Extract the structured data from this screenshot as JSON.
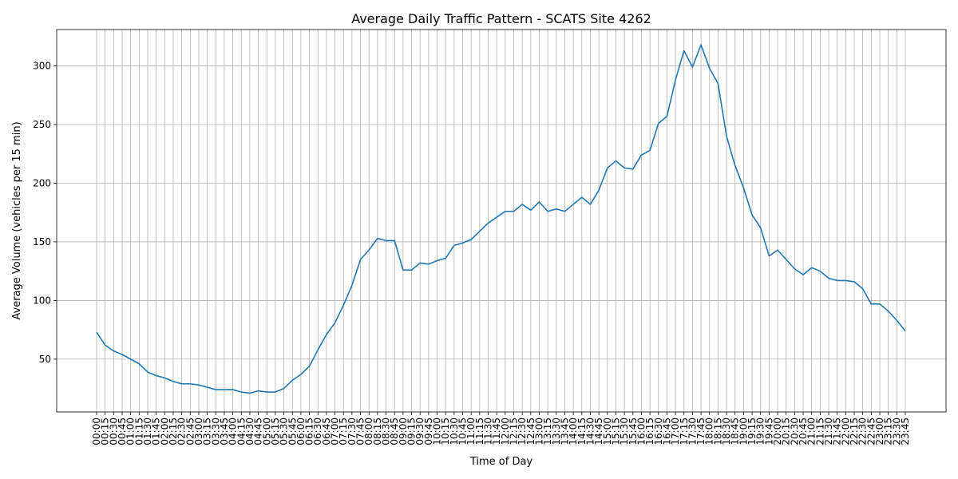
{
  "chart_data": {
    "type": "line",
    "title": "Average Daily Traffic Pattern - SCATS Site 4262",
    "xlabel": "Time of Day",
    "ylabel": "Average Volume (vehicles per 15 min)",
    "ylim": [
      5,
      331
    ],
    "yticks": [
      50,
      100,
      150,
      200,
      250,
      300
    ],
    "grid": true,
    "x_tick_rotation": 90,
    "line_color": "#1f77b4",
    "categories": [
      "00:00",
      "00:15",
      "00:30",
      "00:45",
      "01:00",
      "01:15",
      "01:30",
      "01:45",
      "02:00",
      "02:15",
      "02:30",
      "02:45",
      "03:00",
      "03:15",
      "03:30",
      "03:45",
      "04:00",
      "04:15",
      "04:30",
      "04:45",
      "05:00",
      "05:15",
      "05:30",
      "05:45",
      "06:00",
      "06:15",
      "06:30",
      "06:45",
      "07:00",
      "07:15",
      "07:30",
      "07:45",
      "08:00",
      "08:15",
      "08:30",
      "08:45",
      "09:00",
      "09:15",
      "09:30",
      "09:45",
      "10:00",
      "10:15",
      "10:30",
      "10:45",
      "11:00",
      "11:15",
      "11:30",
      "11:45",
      "12:00",
      "12:15",
      "12:30",
      "12:45",
      "13:00",
      "13:15",
      "13:30",
      "13:45",
      "14:00",
      "14:15",
      "14:30",
      "14:45",
      "15:00",
      "15:15",
      "15:30",
      "15:45",
      "16:00",
      "16:15",
      "16:30",
      "16:45",
      "17:00",
      "17:15",
      "17:30",
      "17:45",
      "18:00",
      "18:15",
      "18:30",
      "18:45",
      "19:00",
      "19:15",
      "19:30",
      "19:45",
      "20:00",
      "20:15",
      "20:30",
      "20:45",
      "21:00",
      "21:15",
      "21:30",
      "21:45",
      "22:00",
      "22:15",
      "22:30",
      "22:45",
      "23:00",
      "23:15",
      "23:30",
      "23:45"
    ],
    "values": [
      73,
      62,
      57,
      54,
      50,
      46,
      39,
      36,
      34,
      31,
      29,
      29,
      28,
      26,
      24,
      24,
      24,
      22,
      21,
      23,
      22,
      22,
      25,
      32,
      37,
      44,
      58,
      71,
      81,
      96,
      113,
      135,
      143,
      153,
      151,
      151,
      126,
      126,
      132,
      131,
      134,
      136,
      147,
      149,
      152,
      159,
      166,
      171,
      176,
      176,
      182,
      177,
      184,
      176,
      178,
      176,
      182,
      188,
      182,
      194,
      213,
      219,
      213,
      212,
      224,
      228,
      251,
      257,
      288,
      313,
      299,
      318,
      298,
      285,
      240,
      215,
      196,
      173,
      162,
      138,
      143,
      135,
      127,
      122,
      128,
      125,
      119,
      117,
      117,
      116,
      110,
      97,
      97,
      91,
      83,
      74
    ]
  }
}
